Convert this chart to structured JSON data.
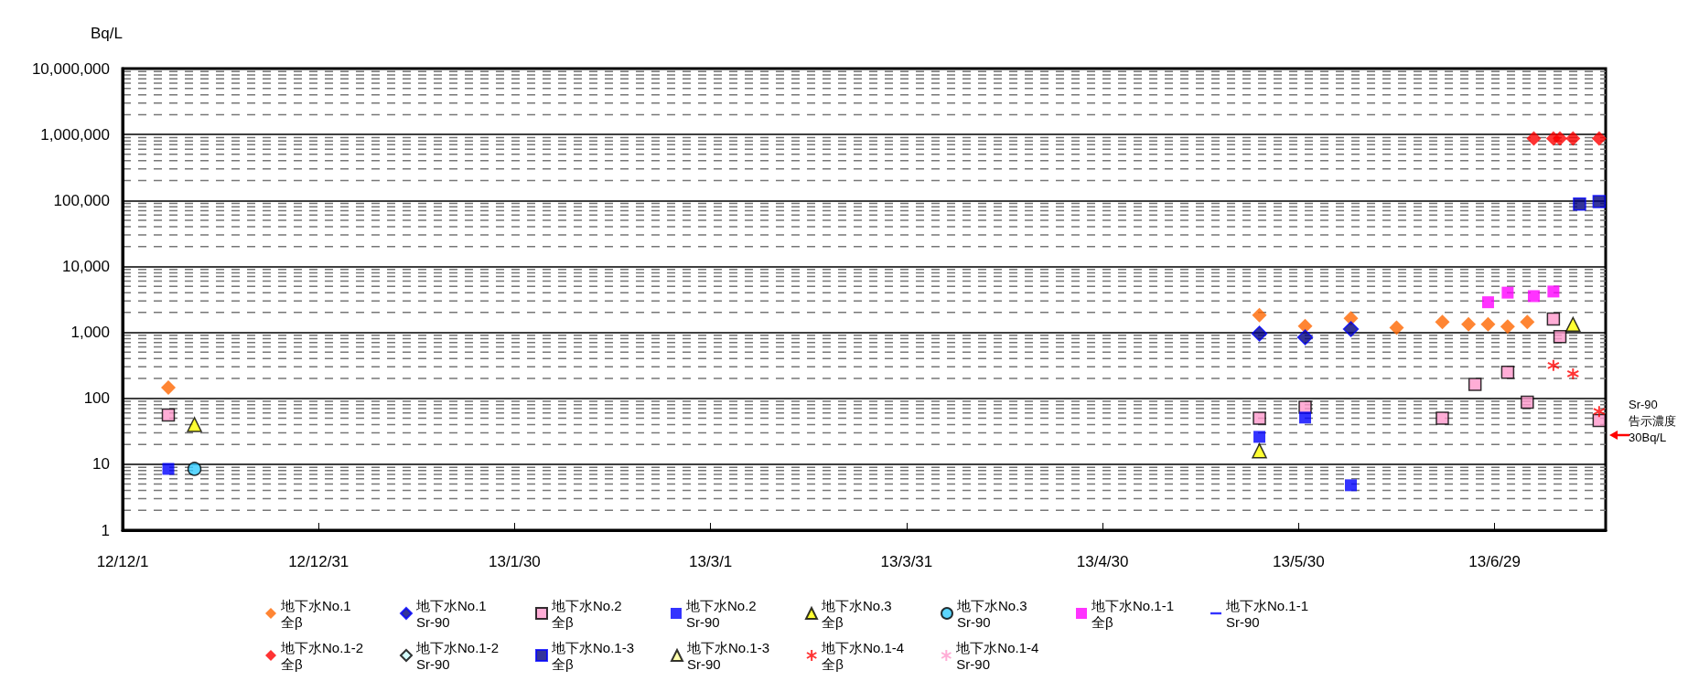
{
  "chart_data": {
    "type": "scatter",
    "ylabel": "Bq/L",
    "log": "y",
    "grid": "y",
    "legend": "bottom",
    "xlim": [
      "2012-12-01",
      "2013-07-16"
    ],
    "xticks": [
      {
        "value": "2012-12-01",
        "label": "12/12/1"
      },
      {
        "value": "2012-12-31",
        "label": "12/12/31"
      },
      {
        "value": "2013-01-30",
        "label": "13/1/30"
      },
      {
        "value": "2013-03-01",
        "label": "13/3/1"
      },
      {
        "value": "2013-03-31",
        "label": "13/3/31"
      },
      {
        "value": "2013-04-30",
        "label": "13/4/30"
      },
      {
        "value": "2013-05-30",
        "label": "13/5/30"
      },
      {
        "value": "2013-06-29",
        "label": "13/6/29"
      }
    ],
    "ylim": [
      1,
      10000000
    ],
    "yticks": [
      1,
      10,
      100,
      {
        "value": 1000,
        "label": "1,000"
      },
      {
        "value": 10000,
        "label": "10,000"
      },
      {
        "value": 100000,
        "label": "100,000"
      },
      {
        "value": 1000000,
        "label": "1,000,000"
      },
      {
        "value": 10000000,
        "label": "10,000,000"
      }
    ],
    "annotations": [
      "Sr-90\n告示濃度\n30Bq/L"
    ],
    "series": [
      {
        "name": "地下水No.1\n全β",
        "color": "#ff6600",
        "marker": "diamond",
        "x": [
          "2012-12-08",
          "2013-05-24",
          "2013-05-31",
          "2013-06-07",
          "2013-06-14",
          "2013-06-21",
          "2013-06-25",
          "2013-06-28",
          "2013-07-01",
          "2013-07-04"
        ],
        "values": [
          145,
          1820,
          1245,
          1630,
          1180,
          1440,
          1320,
          1320,
          1220,
          1440
        ]
      },
      {
        "name": "地下水No.1\nSr-90",
        "color": "#000080",
        "marker": "diamond",
        "x": [
          "2013-05-24",
          "2013-05-31",
          "2013-06-07"
        ],
        "values": [
          955,
          840,
          1120
        ]
      },
      {
        "name": "地下水No.2\n全β",
        "color": "#ff99cc",
        "marker": "square",
        "x": [
          "2012-12-08",
          "2013-05-24",
          "2013-05-31",
          "2013-06-21",
          "2013-06-26",
          "2013-07-01",
          "2013-07-04",
          "2013-07-08",
          "2013-07-09",
          "2013-07-15"
        ],
        "values": [
          56,
          50,
          73,
          50,
          162,
          248,
          87,
          1590,
          860,
          46
        ]
      },
      {
        "name": "地下水No.2\nSr-90",
        "color": "#0000ff",
        "marker": "square",
        "x": [
          "2012-12-08",
          "2013-05-24",
          "2013-05-31",
          "2013-06-07"
        ],
        "values": [
          8.5,
          26,
          51,
          4.8
        ]
      },
      {
        "name": "地下水No.3\n全β",
        "color": "#ffff00",
        "marker": "triangle",
        "x": [
          "2012-12-12",
          "2013-05-24",
          "2013-07-11"
        ],
        "values": [
          40,
          16,
          1320
        ]
      },
      {
        "name": "地下水No.3\nSr-90",
        "color": "#33ccff",
        "marker": "circle",
        "x": [
          "2012-12-12"
        ],
        "values": [
          8.5
        ]
      },
      {
        "name": "地下水No.1-1\n全β",
        "color": "#ff00ff",
        "marker": "square",
        "x": [
          "2013-06-28",
          "2013-07-01",
          "2013-07-05",
          "2013-07-08"
        ],
        "values": [
          2860,
          4000,
          3540,
          4160
        ]
      },
      {
        "name": "地下水No.1-1\nSr-90",
        "color": "#0000ff",
        "marker": "none"
      },
      {
        "name": "地下水No.1-2\n全β",
        "color": "#ff0000",
        "marker": "diamond",
        "x": [
          "2013-07-05",
          "2013-07-08",
          "2013-07-09",
          "2013-07-11",
          "2013-07-15"
        ],
        "values": [
          870000,
          870000,
          870000,
          870000,
          870000
        ]
      },
      {
        "name": "地下水No.1-2\nSr-90",
        "color": "#ccffff",
        "marker": "diamond"
      },
      {
        "name": "地下水No.1-3\n全β",
        "color": "#000080",
        "marker": "square",
        "x": [
          "2013-07-12",
          "2013-07-15"
        ],
        "values": [
          88000,
          96000
        ]
      },
      {
        "name": "地下水No.1-3\nSr-90",
        "color": "#ffff99",
        "marker": "triangle"
      },
      {
        "name": "地下水No.1-4\n全β",
        "color": "#ff0000",
        "marker": "cross",
        "x": [
          "2013-07-08",
          "2013-07-11",
          "2013-07-15"
        ],
        "values": [
          314,
          235,
          63
        ]
      },
      {
        "name": "地下水No.1-4\nSr-90",
        "color": "#ff99cc",
        "marker": "cross"
      }
    ]
  }
}
